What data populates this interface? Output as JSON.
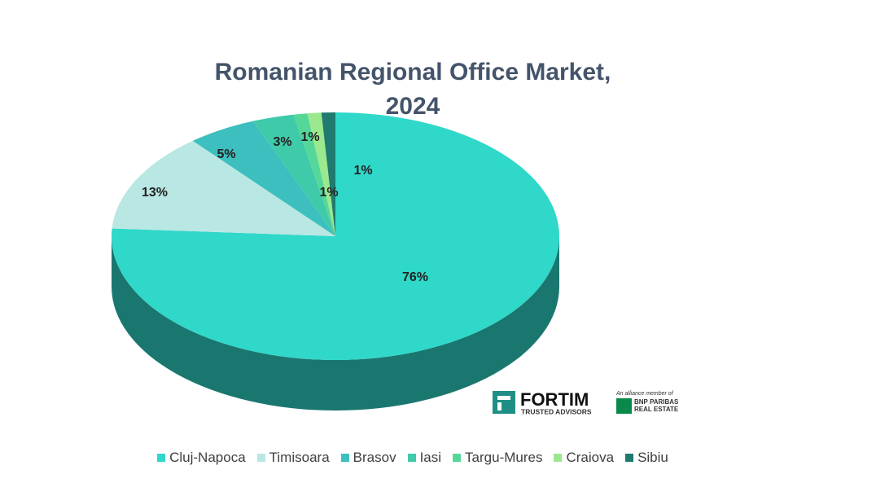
{
  "chart_data": {
    "type": "pie",
    "title": "Romanian Regional Office Market, 2024",
    "categories": [
      "Cluj-Napoca",
      "Timisoara",
      "Brasov",
      "Iasi",
      "Targu-Mures",
      "Craiova",
      "Sibiu"
    ],
    "values": [
      76,
      13,
      5,
      3,
      1,
      1,
      1
    ],
    "value_labels": [
      "76%",
      "13%",
      "5%",
      "3%",
      "1%",
      "1%",
      "1%"
    ],
    "colors": [
      "#2fd8c9",
      "#b9e7e3",
      "#3cbfbe",
      "#3fcaa9",
      "#56d79a",
      "#9ce88e",
      "#1f7a6f"
    ],
    "legend": "bottom"
  },
  "branding": {
    "fortim": "FORTIM",
    "fortim_tagline": "TRUSTED ADVISORS",
    "alliance": "An alliance member of",
    "bnp": "BNP PARIBAS",
    "bnp_tagline": "REAL ESTATE"
  }
}
